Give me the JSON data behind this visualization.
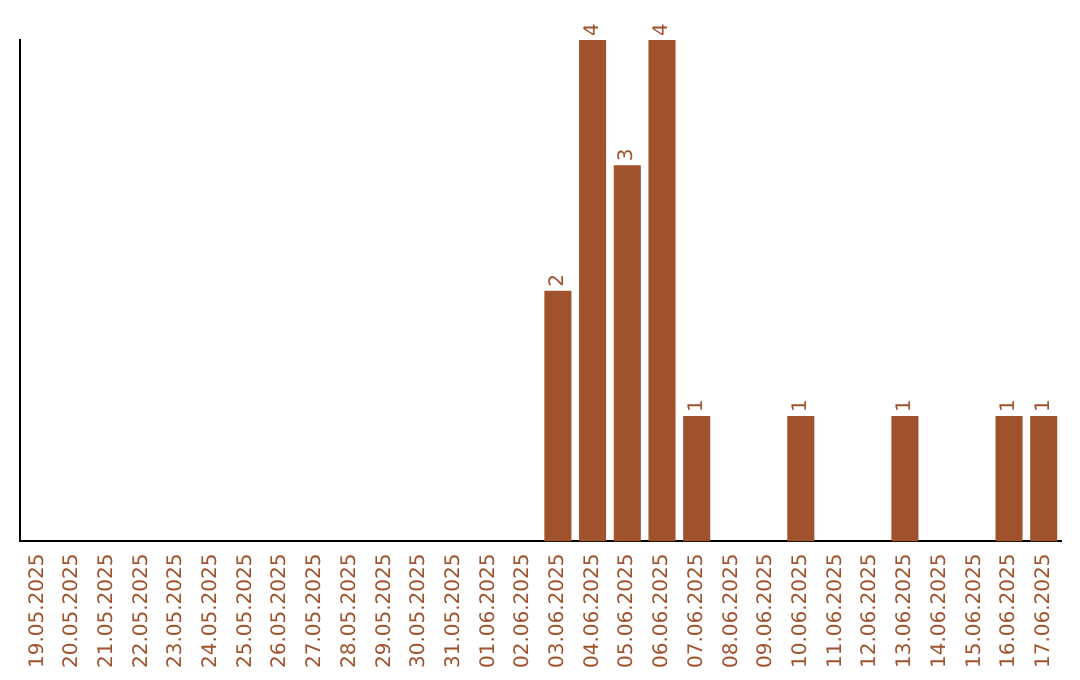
{
  "chart_data": {
    "type": "bar",
    "categories": [
      "19.05.2025",
      "20.05.2025",
      "21.05.2025",
      "22.05.2025",
      "23.05.2025",
      "24.05.2025",
      "25.05.2025",
      "26.05.2025",
      "27.05.2025",
      "28.05.2025",
      "29.05.2025",
      "30.05.2025",
      "31.05.2025",
      "01.06.2025",
      "02.06.2025",
      "03.06.2025",
      "04.06.2025",
      "05.06.2025",
      "06.06.2025",
      "07.06.2025",
      "08.06.2025",
      "09.06.2025",
      "10.06.2025",
      "11.06.2025",
      "12.06.2025",
      "13.06.2025",
      "14.06.2025",
      "15.06.2025",
      "16.06.2025",
      "17.06.2025"
    ],
    "values": [
      null,
      null,
      null,
      null,
      null,
      null,
      null,
      null,
      null,
      null,
      null,
      null,
      null,
      null,
      null,
      2,
      4,
      3,
      4,
      1,
      null,
      null,
      1,
      null,
      null,
      1,
      null,
      null,
      1,
      1
    ],
    "value_labels": [
      null,
      null,
      null,
      null,
      null,
      null,
      null,
      null,
      null,
      null,
      null,
      null,
      null,
      null,
      null,
      "2",
      "4",
      "3",
      "4",
      "1",
      null,
      null,
      "1",
      null,
      null,
      "1",
      null,
      null,
      "1",
      "1"
    ],
    "color": "#a0522d",
    "tick_labels": "x",
    "grid": false,
    "legend": false
  }
}
